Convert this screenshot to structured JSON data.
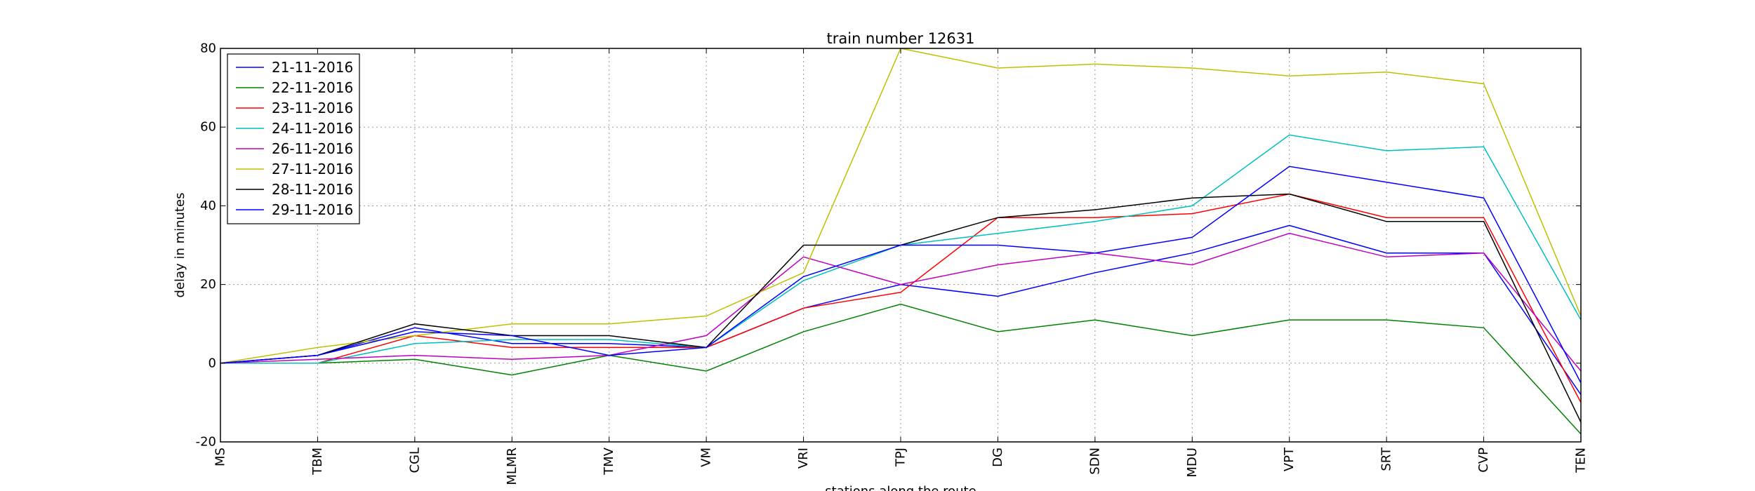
{
  "chart_data": {
    "type": "line",
    "title": "train number 12631",
    "xlabel": "stations along the route",
    "ylabel": "delay in minutes",
    "ylim": [
      -20,
      80
    ],
    "yticks": [
      -20,
      0,
      20,
      40,
      60,
      80
    ],
    "grid": true,
    "legend_position": "top-left",
    "categories": [
      "MS",
      "TBM",
      "CGL",
      "MLMR",
      "TMV",
      "VM",
      "VRI",
      "TPJ",
      "DG",
      "SDN",
      "MDU",
      "VPT",
      "SRT",
      "CVP",
      "TEN"
    ],
    "series": [
      {
        "name": "21-11-2016",
        "color": "#0000ff",
        "values": [
          0,
          2,
          9,
          5,
          5,
          4,
          14,
          20,
          17,
          23,
          28,
          35,
          28,
          28,
          -8
        ]
      },
      {
        "name": "22-11-2016",
        "color": "#008000",
        "values": [
          0,
          0,
          1,
          -3,
          2,
          -2,
          8,
          15,
          8,
          11,
          7,
          11,
          11,
          9,
          -18
        ]
      },
      {
        "name": "23-11-2016",
        "color": "#ff0000",
        "values": [
          0,
          0,
          7,
          4,
          4,
          4,
          14,
          18,
          37,
          37,
          38,
          43,
          37,
          37,
          -10
        ]
      },
      {
        "name": "24-11-2016",
        "color": "#00bfbf",
        "values": [
          0,
          0,
          5,
          6,
          6,
          4,
          21,
          30,
          33,
          36,
          40,
          58,
          54,
          55,
          11
        ]
      },
      {
        "name": "26-11-2016",
        "color": "#bf00bf",
        "values": [
          0,
          1,
          2,
          1,
          2,
          7,
          27,
          20,
          25,
          28,
          25,
          33,
          27,
          28,
          -2
        ]
      },
      {
        "name": "27-11-2016",
        "color": "#bfbf00",
        "values": [
          0,
          4,
          7,
          10,
          10,
          12,
          23,
          80,
          75,
          76,
          75,
          73,
          74,
          71,
          12
        ]
      },
      {
        "name": "28-11-2016",
        "color": "#000000",
        "values": [
          0,
          2,
          10,
          7,
          7,
          4,
          30,
          30,
          37,
          39,
          42,
          43,
          36,
          36,
          -15
        ]
      },
      {
        "name": "29-11-2016",
        "color": "#0000ff",
        "values": [
          0,
          2,
          8,
          7,
          2,
          4,
          22,
          30,
          30,
          28,
          32,
          50,
          46,
          42,
          -5
        ]
      }
    ]
  }
}
